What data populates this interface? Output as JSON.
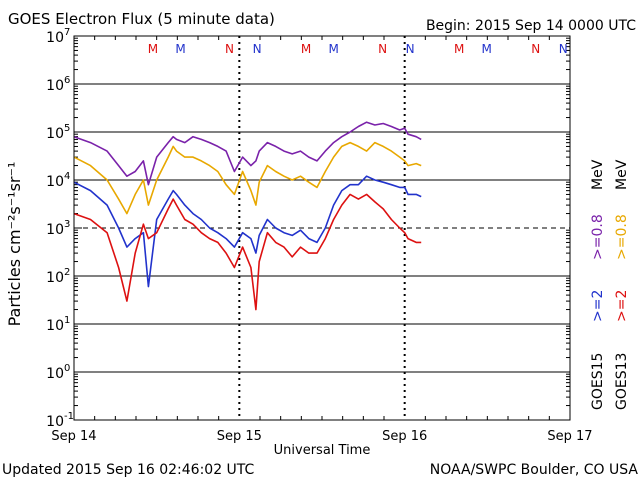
{
  "header": {
    "title": "GOES Electron Flux (5 minute data)",
    "begin": "Begin: 2015 Sep 14 0000 UTC"
  },
  "footer": {
    "updated": "Updated 2015 Sep 16 02:46:02 UTC",
    "credit": "NOAA/SWPC Boulder, CO USA"
  },
  "chart_data": {
    "type": "line",
    "title": "GOES Electron Flux (5 minute data)",
    "xlabel": "Universal Time",
    "ylabel": "Particles cm⁻²s⁻¹sr⁻¹",
    "yscale": "log",
    "ylim": [
      0.1,
      10000000
    ],
    "xlim_days": [
      0,
      3
    ],
    "x_ticks": [
      "Sep 14",
      "Sep 15",
      "Sep 16",
      "Sep 17"
    ],
    "y_tick_exponents": [
      "7",
      "6",
      "5",
      "4",
      "3",
      "2",
      "1",
      "0",
      "-1"
    ],
    "threshold_line": 1000,
    "grid": true,
    "legend_placement": "right, vertical",
    "legend": [
      {
        "name": "GOES15",
        "energy_ge": ">=2",
        "energy_low": ">=0.8",
        "unit": "MeV",
        "color_high": "#2233cc",
        "color_low": "#7a22aa"
      },
      {
        "name": "GOES13",
        "energy_ge": ">=2",
        "energy_low": ">=0.8",
        "unit": "MeV",
        "color_high": "#dd1111",
        "color_low": "#e8a800"
      }
    ],
    "markers": [
      {
        "label": "M",
        "x": 0.32,
        "color": "#dd1111"
      },
      {
        "label": "M",
        "x": 0.5,
        "color": "#2233cc"
      },
      {
        "label": "N",
        "x": 0.82,
        "color": "#dd1111"
      },
      {
        "label": "N",
        "x": 1.0,
        "color": "#2233cc"
      },
      {
        "label": "M",
        "x": 1.32,
        "color": "#dd1111"
      },
      {
        "label": "M",
        "x": 1.5,
        "color": "#2233cc"
      },
      {
        "label": "N",
        "x": 1.82,
        "color": "#dd1111"
      },
      {
        "label": "N",
        "x": 2.0,
        "color": "#2233cc"
      },
      {
        "label": "M",
        "x": 2.32,
        "color": "#dd1111"
      },
      {
        "label": "M",
        "x": 2.5,
        "color": "#2233cc"
      },
      {
        "label": "N",
        "x": 2.82,
        "color": "#dd1111"
      },
      {
        "label": "N",
        "x": 3.0,
        "color": "#2233cc"
      }
    ],
    "series": [
      {
        "name": "GOES15 >=0.8 MeV",
        "color": "#7a22aa",
        "x": [
          0,
          0.1,
          0.2,
          0.27,
          0.32,
          0.37,
          0.42,
          0.45,
          0.5,
          0.57,
          0.6,
          0.62,
          0.67,
          0.72,
          0.77,
          0.82,
          0.87,
          0.92,
          0.97,
          1.02,
          1.07,
          1.1,
          1.12,
          1.17,
          1.22,
          1.27,
          1.32,
          1.37,
          1.42,
          1.47,
          1.52,
          1.57,
          1.62,
          1.67,
          1.72,
          1.77,
          1.82,
          1.87,
          1.92,
          1.97,
          2.0,
          2.02,
          2.07,
          2.1
        ],
        "y": [
          80000,
          60000,
          40000,
          20000,
          12000,
          15000,
          25000,
          8000,
          30000,
          60000,
          80000,
          70000,
          60000,
          80000,
          70000,
          60000,
          50000,
          40000,
          15000,
          30000,
          20000,
          25000,
          40000,
          60000,
          50000,
          40000,
          35000,
          40000,
          30000,
          25000,
          40000,
          60000,
          80000,
          100000,
          130000,
          160000,
          140000,
          150000,
          130000,
          110000,
          120000,
          90000,
          80000,
          70000
        ]
      },
      {
        "name": "GOES13 >=0.8 MeV",
        "color": "#e8a800",
        "x": [
          0,
          0.1,
          0.2,
          0.27,
          0.32,
          0.37,
          0.42,
          0.45,
          0.5,
          0.57,
          0.6,
          0.62,
          0.67,
          0.72,
          0.77,
          0.82,
          0.87,
          0.92,
          0.97,
          1.02,
          1.07,
          1.1,
          1.12,
          1.17,
          1.22,
          1.27,
          1.32,
          1.37,
          1.42,
          1.47,
          1.52,
          1.57,
          1.62,
          1.67,
          1.72,
          1.77,
          1.82,
          1.87,
          1.92,
          1.97,
          2.0,
          2.02,
          2.07,
          2.1
        ],
        "y": [
          30000,
          20000,
          10000,
          4000,
          2000,
          5000,
          10000,
          3000,
          10000,
          30000,
          50000,
          40000,
          30000,
          30000,
          25000,
          20000,
          15000,
          8000,
          5000,
          15000,
          6000,
          3000,
          9000,
          20000,
          15000,
          12000,
          10000,
          12000,
          9000,
          7000,
          15000,
          30000,
          50000,
          60000,
          50000,
          40000,
          60000,
          50000,
          40000,
          30000,
          25000,
          20000,
          22000,
          20000
        ]
      },
      {
        "name": "GOES15 >=2 MeV",
        "color": "#2233cc",
        "x": [
          0,
          0.1,
          0.2,
          0.27,
          0.32,
          0.37,
          0.42,
          0.45,
          0.5,
          0.57,
          0.6,
          0.62,
          0.67,
          0.72,
          0.77,
          0.82,
          0.87,
          0.92,
          0.97,
          1.02,
          1.07,
          1.1,
          1.12,
          1.17,
          1.22,
          1.27,
          1.32,
          1.37,
          1.42,
          1.47,
          1.52,
          1.57,
          1.62,
          1.67,
          1.72,
          1.77,
          1.82,
          1.87,
          1.92,
          1.97,
          2.0,
          2.02,
          2.07,
          2.1
        ],
        "y": [
          9000,
          6000,
          3000,
          1000,
          400,
          600,
          800,
          60,
          1500,
          4000,
          6000,
          5000,
          3000,
          2000,
          1500,
          1000,
          800,
          600,
          400,
          800,
          600,
          300,
          700,
          1500,
          1000,
          800,
          700,
          900,
          600,
          500,
          1000,
          3000,
          6000,
          8000,
          8000,
          12000,
          10000,
          9000,
          8000,
          7000,
          7000,
          5000,
          5000,
          4500
        ]
      },
      {
        "name": "GOES13 >=2 MeV",
        "color": "#dd1111",
        "x": [
          0,
          0.1,
          0.2,
          0.27,
          0.32,
          0.37,
          0.42,
          0.45,
          0.5,
          0.57,
          0.6,
          0.62,
          0.67,
          0.72,
          0.77,
          0.82,
          0.87,
          0.92,
          0.97,
          1.02,
          1.07,
          1.1,
          1.12,
          1.17,
          1.22,
          1.27,
          1.32,
          1.37,
          1.42,
          1.47,
          1.52,
          1.57,
          1.62,
          1.67,
          1.72,
          1.77,
          1.82,
          1.87,
          1.92,
          1.97,
          2.0,
          2.02,
          2.07,
          2.1
        ],
        "y": [
          2000,
          1500,
          800,
          150,
          30,
          300,
          1200,
          600,
          800,
          2500,
          4000,
          3000,
          1500,
          1200,
          800,
          600,
          500,
          300,
          150,
          400,
          150,
          20,
          200,
          800,
          500,
          400,
          250,
          400,
          300,
          300,
          600,
          1500,
          3000,
          5000,
          4000,
          5000,
          3500,
          2500,
          1500,
          1000,
          800,
          600,
          500,
          500
        ]
      }
    ]
  }
}
